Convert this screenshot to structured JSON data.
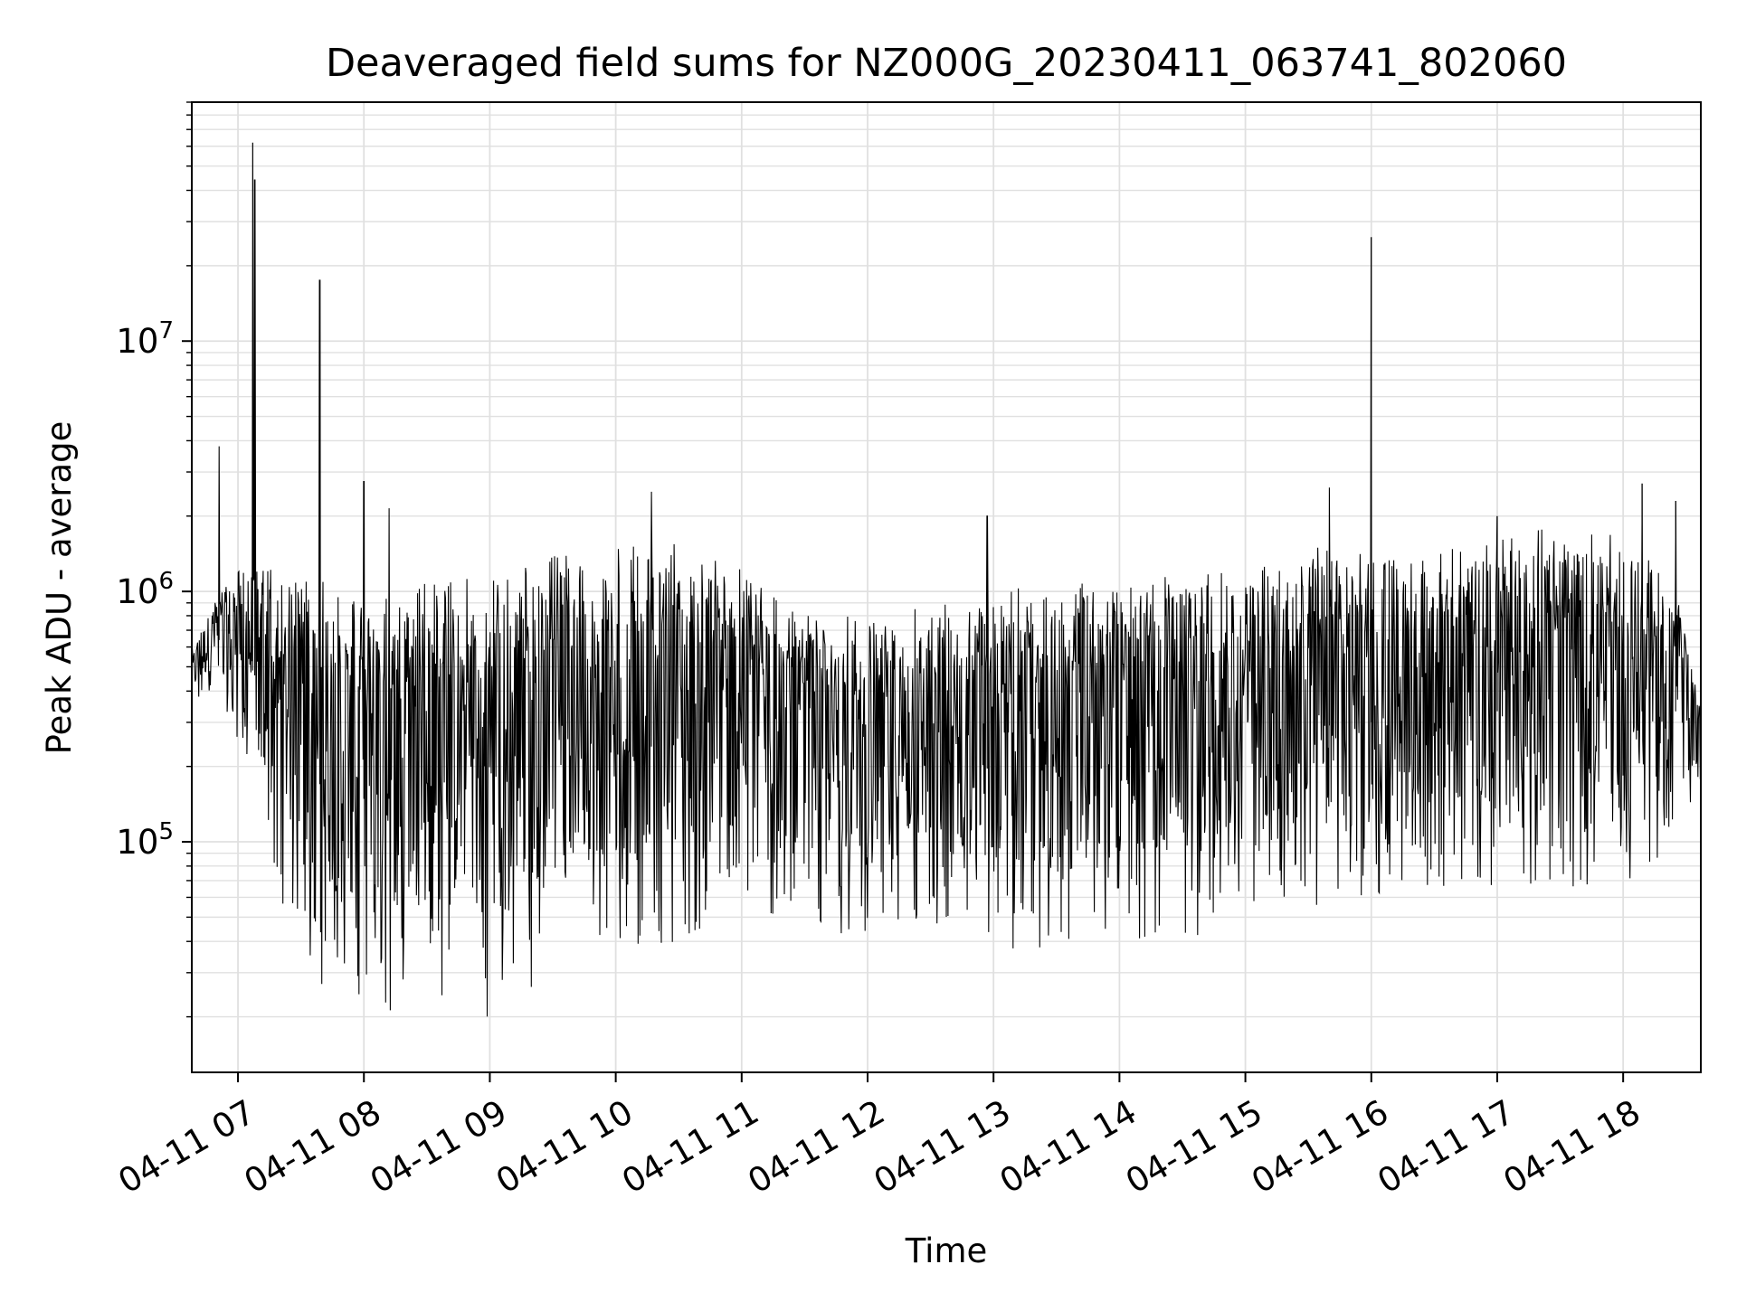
{
  "chart_data": {
    "type": "line",
    "title": "Deaveraged field sums for NZ000G_20230411_063741_802060",
    "xlabel": "Time",
    "ylabel": "Peak ADU - average",
    "xlim": [
      "2023-04-11 06:38",
      "2023-04-11 18:37"
    ],
    "ylim": [
      12000,
      90000000
    ],
    "yscale": "log",
    "grid": true,
    "line_color": "#000000",
    "grid_color": "#e0e0e0",
    "x_ticks": [
      {
        "x": "2023-04-11 07:00",
        "label": "04-11 07"
      },
      {
        "x": "2023-04-11 08:00",
        "label": "04-11 08"
      },
      {
        "x": "2023-04-11 09:00",
        "label": "04-11 09"
      },
      {
        "x": "2023-04-11 10:00",
        "label": "04-11 10"
      },
      {
        "x": "2023-04-11 11:00",
        "label": "04-11 11"
      },
      {
        "x": "2023-04-11 12:00",
        "label": "04-11 12"
      },
      {
        "x": "2023-04-11 13:00",
        "label": "04-11 13"
      },
      {
        "x": "2023-04-11 14:00",
        "label": "04-11 14"
      },
      {
        "x": "2023-04-11 15:00",
        "label": "04-11 15"
      },
      {
        "x": "2023-04-11 16:00",
        "label": "04-11 16"
      },
      {
        "x": "2023-04-11 17:00",
        "label": "04-11 17"
      },
      {
        "x": "2023-04-11 18:00",
        "label": "04-11 18"
      }
    ],
    "y_ticks": [
      {
        "value": 100000,
        "base": "10",
        "exp": "5"
      },
      {
        "value": 1000000,
        "base": "10",
        "exp": "6"
      },
      {
        "value": 10000000,
        "base": "10",
        "exp": "7"
      }
    ],
    "spikes": [
      {
        "x": "2023-04-11 06:51",
        "y": 3800000
      },
      {
        "x": "2023-04-11 07:07",
        "y": 62000000
      },
      {
        "x": "2023-04-11 07:08",
        "y": 44000000
      },
      {
        "x": "2023-04-11 07:39",
        "y": 17500000
      },
      {
        "x": "2023-04-11 08:00",
        "y": 2750000
      },
      {
        "x": "2023-04-11 08:12",
        "y": 2150000
      },
      {
        "x": "2023-04-11 10:17",
        "y": 2500000
      },
      {
        "x": "2023-04-11 12:57",
        "y": 2000000
      },
      {
        "x": "2023-04-11 15:40",
        "y": 2600000
      },
      {
        "x": "2023-04-11 16:00",
        "y": 26000000
      },
      {
        "x": "2023-04-11 17:00",
        "y": 2000000
      },
      {
        "x": "2023-04-11 18:09",
        "y": 2700000
      },
      {
        "x": "2023-04-11 18:25",
        "y": 2300000
      }
    ],
    "envelope": [
      {
        "x": "2023-04-11 06:38",
        "low": 330000,
        "high": 600000
      },
      {
        "x": "2023-04-11 06:50",
        "low": 420000,
        "high": 1000000
      },
      {
        "x": "2023-04-11 07:05",
        "low": 200000,
        "high": 1400000
      },
      {
        "x": "2023-04-11 07:20",
        "low": 60000,
        "high": 1200000
      },
      {
        "x": "2023-04-11 07:40",
        "low": 25000,
        "high": 1100000
      },
      {
        "x": "2023-04-11 08:00",
        "low": 21000,
        "high": 1050000
      },
      {
        "x": "2023-04-11 08:30",
        "low": 20000,
        "high": 1100000
      },
      {
        "x": "2023-04-11 09:00",
        "low": 20000,
        "high": 1200000
      },
      {
        "x": "2023-04-11 09:20",
        "low": 25000,
        "high": 1350000
      },
      {
        "x": "2023-04-11 09:40",
        "low": 30000,
        "high": 1450000
      },
      {
        "x": "2023-04-11 10:00",
        "low": 35000,
        "high": 1500000
      },
      {
        "x": "2023-04-11 10:30",
        "low": 40000,
        "high": 1550000
      },
      {
        "x": "2023-04-11 11:00",
        "low": 50000,
        "high": 1350000
      },
      {
        "x": "2023-04-11 11:30",
        "low": 45000,
        "high": 800000
      },
      {
        "x": "2023-04-11 12:00",
        "low": 40000,
        "high": 800000
      },
      {
        "x": "2023-04-11 12:30",
        "low": 40000,
        "high": 950000
      },
      {
        "x": "2023-04-11 13:00",
        "low": 35000,
        "high": 1100000
      },
      {
        "x": "2023-04-11 13:30",
        "low": 35000,
        "high": 1050000
      },
      {
        "x": "2023-04-11 14:00",
        "low": 40000,
        "high": 1150000
      },
      {
        "x": "2023-04-11 14:30",
        "low": 40000,
        "high": 1200000
      },
      {
        "x": "2023-04-11 15:00",
        "low": 50000,
        "high": 1250000
      },
      {
        "x": "2023-04-11 15:30",
        "low": 55000,
        "high": 1500000
      },
      {
        "x": "2023-04-11 16:00",
        "low": 60000,
        "high": 1500000
      },
      {
        "x": "2023-04-11 16:30",
        "low": 65000,
        "high": 1400000
      },
      {
        "x": "2023-04-11 17:00",
        "low": 65000,
        "high": 1700000
      },
      {
        "x": "2023-04-11 17:30",
        "low": 65000,
        "high": 1800000
      },
      {
        "x": "2023-04-11 18:00",
        "low": 65000,
        "high": 1700000
      },
      {
        "x": "2023-04-11 18:25",
        "low": 100000,
        "high": 1100000
      },
      {
        "x": "2023-04-11 18:37",
        "low": 170000,
        "high": 350000
      }
    ]
  }
}
